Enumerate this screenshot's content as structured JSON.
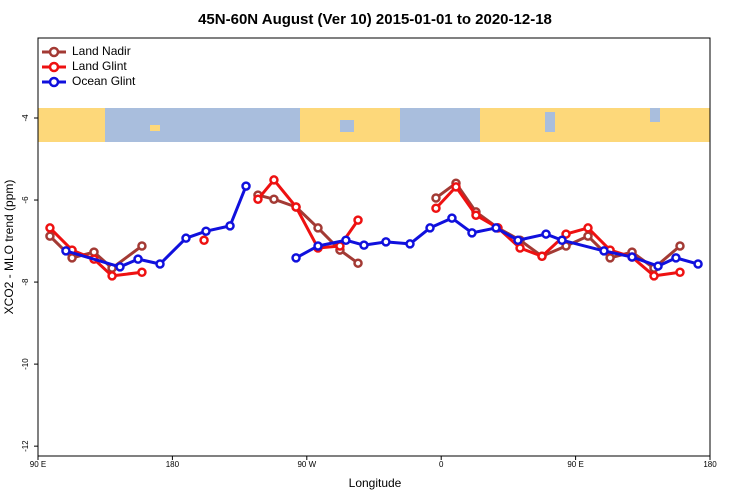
{
  "chart_data": {
    "type": "line",
    "title": "45N-60N August (Ver 10)   2015-01-01 to 2020-12-18",
    "x_label": "Longitude",
    "y_label": "XCO2 - MLO trend (ppm)",
    "xlim": [
      90,
      540
    ],
    "xticks": [
      {
        "value": 90,
        "label": "90 E"
      },
      180,
      {
        "value": 270,
        "label": "90 W"
      },
      {
        "value": 360,
        "label": "0"
      },
      {
        "value": 450,
        "label": "90 E"
      },
      {
        "value": 540,
        "label": "180"
      }
    ],
    "ylim": [
      -12.24,
      -2.05
    ],
    "yticks": [
      -4,
      -6,
      -8,
      -10,
      -12
    ],
    "legend": "upper left",
    "series": [
      {
        "name": "Land Nadir",
        "color": "#a33a34",
        "x": [
          98,
          112.8,
          127.5,
          139.6,
          159.6,
          200,
          237.3,
          248,
          262.8,
          277.5,
          292.2,
          304.3,
          330,
          356.5,
          369.9,
          383.3,
          398,
          412.8,
          427.5,
          443.6,
          458.3,
          473.1,
          487.8,
          502.5,
          519.9
        ],
        "values": [
          -6.88,
          -7.41,
          -7.27,
          -7.66,
          -7.12,
          null,
          -5.88,
          -5.98,
          -6.17,
          -6.68,
          -7.22,
          -7.54,
          null,
          -5.95,
          -5.59,
          -6.29,
          -6.68,
          -6.98,
          -7.37,
          -7.12,
          -6.88,
          -7.41,
          -7.27,
          -7.66,
          -7.12
        ]
      },
      {
        "name": "Land Glint",
        "color": "#ee1111",
        "x": [
          98,
          112.8,
          127.5,
          139.6,
          159.6,
          180,
          201.2,
          220,
          237.3,
          248,
          262.8,
          277.5,
          292.2,
          304.3,
          330,
          356.5,
          369.9,
          383.3,
          398,
          412.8,
          427.5,
          443.6,
          458.3,
          473.1,
          487.8,
          502.5,
          519.9
        ],
        "values": [
          -6.68,
          -7.22,
          -7.44,
          -7.85,
          -7.76,
          null,
          -6.98,
          null,
          -5.98,
          -5.51,
          -6.17,
          -7.17,
          -7.12,
          -6.49,
          null,
          -6.2,
          -5.68,
          -6.37,
          -6.68,
          -7.17,
          -7.37,
          -6.83,
          -6.68,
          -7.22,
          -7.39,
          -7.85,
          -7.76
        ]
      },
      {
        "name": "Ocean Glint",
        "color": "#1010dd",
        "x": [
          108.7,
          144.9,
          157,
          171.7,
          189.1,
          202.5,
          218.6,
          229.3,
          250,
          262.8,
          277.5,
          296.2,
          308.3,
          323,
          339.1,
          352.5,
          367.2,
          380.6,
          396.7,
          411.4,
          430.2,
          440.9,
          469,
          487.8,
          505.2,
          517.2,
          532
        ],
        "values": [
          -7.24,
          -7.63,
          -7.44,
          -7.56,
          -6.93,
          -6.76,
          -6.63,
          -5.66,
          null,
          -7.41,
          -7.12,
          -6.98,
          -7.1,
          -7.02,
          -7.07,
          -6.68,
          -6.44,
          -6.8,
          -6.68,
          -6.98,
          -6.83,
          -6.98,
          -7.24,
          -7.39,
          -7.61,
          -7.41,
          -7.56
        ]
      }
    ]
  }
}
